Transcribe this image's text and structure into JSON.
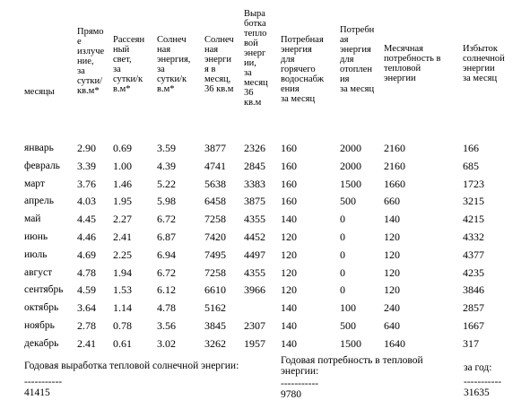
{
  "headers": [
    "месяцы",
    "Прямо\nе\nизлуче\nние,\nза\nсутки/\nкв.м*",
    "Рассеян\nный\nсвет,\nза\nсутки/к\nв.м*",
    "Солнеч\nная\nэнергия,\nза\nсутки/к\nв.м*",
    "Солнеч\nная\nэнерги\nя в\nмесяц,\n36 кв.м",
    "Выра\nботка\nтепло\nвой\nэнерг\nии,\nза\nмесяц\n36\nкв.м",
    "Потребная\nэнергия\nдля\nгорячего\nводоснабж\nения\nза месяц",
    "Потребн\nая\nэнергия\nдля\nотоплен\nия\nза месяц",
    "Месячная\nпотребность в\nтепловой\nэнергии",
    "Избыток\nсолнечной\nэнергии\nза месяц"
  ],
  "rows": [
    [
      "январь",
      "2.90",
      "0.69",
      "3.59",
      "3877",
      "2326",
      "160",
      "2000",
      "2160",
      "166"
    ],
    [
      "февраль",
      "3.39",
      "1.00",
      "4.39",
      "4741",
      "2845",
      "160",
      "2000",
      "2160",
      "685"
    ],
    [
      "март",
      "3.76",
      "1.46",
      "5.22",
      "5638",
      "3383",
      "160",
      "1500",
      "1660",
      "1723"
    ],
    [
      "апрель",
      "4.03",
      "1.95",
      "5.98",
      "6458",
      "3875",
      "160",
      "500",
      "660",
      "3215"
    ],
    [
      "май",
      "4.45",
      "2.27",
      "6.72",
      "7258",
      "4355",
      "140",
      "0",
      "140",
      "4215"
    ],
    [
      "июнь",
      "4.46",
      "2.41",
      "6.87",
      "7420",
      "4452",
      "120",
      "0",
      "120",
      "4332"
    ],
    [
      "июль",
      "4.69",
      "2.25",
      "6.94",
      "7495",
      "4497",
      "120",
      "0",
      "120",
      "4377"
    ],
    [
      "август",
      "4.78",
      "1.94",
      "6.72",
      "7258",
      "4355",
      "120",
      "0",
      "120",
      "4235"
    ],
    [
      "сентябрь",
      "4.59",
      "1.53",
      "6.12",
      "6610",
      "3966",
      "120",
      "0",
      "120",
      "3846"
    ],
    [
      "октябрь",
      "3.64",
      "1.14",
      "4.78",
      "5162",
      "",
      "140",
      "100",
      "240",
      "2857"
    ],
    [
      "ноябрь",
      "2.78",
      "0.78",
      "3.56",
      "3845",
      "2307",
      "140",
      "500",
      "640",
      "1667"
    ],
    [
      "декабрь",
      "2.41",
      "0.61",
      "3.02",
      "3262",
      "1957",
      "140",
      "1500",
      "1640",
      "317"
    ]
  ],
  "footer": {
    "annual_production_label": "Годовая выработка тепловой солнечной энергии:",
    "annual_production_value": "-----------\n41415",
    "annual_need_label": "Годовая потребность в тепловой\nэнергии:",
    "annual_need_value": "-----------\n9780",
    "per_year_label": "за год:",
    "per_year_value": "-----------\n31635"
  }
}
